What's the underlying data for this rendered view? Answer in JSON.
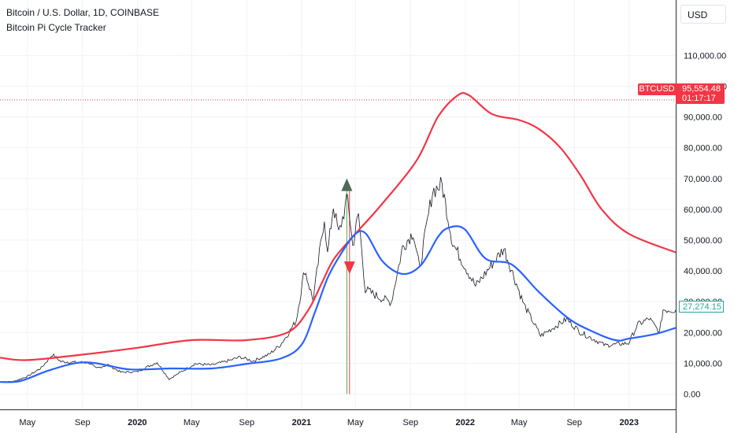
{
  "header": {
    "title": "Bitcoin / U.S. Dollar, 1D, COINBASE",
    "subtitle": "Bitcoin Pi Cycle Tracker"
  },
  "currency_label": "USD",
  "price_marker": {
    "symbol": "BTCUSD",
    "value": "95,554.48",
    "countdown": "01:17:17",
    "color": "#f23645"
  },
  "last_value_label": "27,274.15",
  "chart_data": {
    "type": "line",
    "yaxis": {
      "range": [
        -5000,
        128000
      ],
      "ticks": [
        {
          "value": 0,
          "label": "0.00"
        },
        {
          "value": 10000,
          "label": "10,000.00"
        },
        {
          "value": 20000,
          "label": "20,000.00"
        },
        {
          "value": 30000,
          "label": "30,000.00"
        },
        {
          "value": 40000,
          "label": "40,000.00"
        },
        {
          "value": 50000,
          "label": "50,000.00"
        },
        {
          "value": 60000,
          "label": "60,000.00"
        },
        {
          "value": 70000,
          "label": "70,000.00"
        },
        {
          "value": 80000,
          "label": "80,000.00"
        },
        {
          "value": 90000,
          "label": "90,000.00"
        },
        {
          "value": 100000,
          "label": "100,000.00"
        },
        {
          "value": 110000,
          "label": "110,000.00"
        }
      ]
    },
    "xaxis": {
      "range": [
        "2019-03-01",
        "2023-04-15"
      ],
      "ticks": [
        {
          "date": "2019-05-01",
          "label": "May",
          "bold": false
        },
        {
          "date": "2019-09-01",
          "label": "Sep",
          "bold": false
        },
        {
          "date": "2020-01-01",
          "label": "2020",
          "bold": true
        },
        {
          "date": "2020-05-01",
          "label": "May",
          "bold": false
        },
        {
          "date": "2020-09-01",
          "label": "Sep",
          "bold": false
        },
        {
          "date": "2021-01-01",
          "label": "2021",
          "bold": true
        },
        {
          "date": "2021-05-01",
          "label": "May",
          "bold": false
        },
        {
          "date": "2021-09-01",
          "label": "Sep",
          "bold": false
        },
        {
          "date": "2022-01-01",
          "label": "2022",
          "bold": true
        },
        {
          "date": "2022-05-01",
          "label": "May",
          "bold": false
        },
        {
          "date": "2022-09-01",
          "label": "Sep",
          "bold": false
        },
        {
          "date": "2023-01-01",
          "label": "2023",
          "bold": true
        }
      ]
    },
    "price_line": 95554.48,
    "series": [
      {
        "role": "price",
        "color": "#131722",
        "points": [
          [
            "2019-03-01",
            3800
          ],
          [
            "2019-04-01",
            4100
          ],
          [
            "2019-05-01",
            5700
          ],
          [
            "2019-06-01",
            8500
          ],
          [
            "2019-06-26",
            12800
          ],
          [
            "2019-07-15",
            10500
          ],
          [
            "2019-08-15",
            10300
          ],
          [
            "2019-09-15",
            10200
          ],
          [
            "2019-10-01",
            8300
          ],
          [
            "2019-10-27",
            9500
          ],
          [
            "2019-11-25",
            7100
          ],
          [
            "2019-12-31",
            7200
          ],
          [
            "2020-02-14",
            10300
          ],
          [
            "2020-03-12",
            4800
          ],
          [
            "2020-04-01",
            6600
          ],
          [
            "2020-05-08",
            9800
          ],
          [
            "2020-06-15",
            9400
          ],
          [
            "2020-07-27",
            11000
          ],
          [
            "2020-08-17",
            12000
          ],
          [
            "2020-09-15",
            10700
          ],
          [
            "2020-10-21",
            12900
          ],
          [
            "2020-11-15",
            16000
          ],
          [
            "2020-12-01",
            19300
          ],
          [
            "2020-12-20",
            23800
          ],
          [
            "2021-01-08",
            40500
          ],
          [
            "2021-01-27",
            30400
          ],
          [
            "2021-02-21",
            57500
          ],
          [
            "2021-02-28",
            45200
          ],
          [
            "2021-03-13",
            61200
          ],
          [
            "2021-03-25",
            52000
          ],
          [
            "2021-04-14",
            64000
          ],
          [
            "2021-04-25",
            48000
          ],
          [
            "2021-05-08",
            58500
          ],
          [
            "2021-05-23",
            34000
          ],
          [
            "2021-06-22",
            31500
          ],
          [
            "2021-07-20",
            29800
          ],
          [
            "2021-08-14",
            47500
          ],
          [
            "2021-09-07",
            52700
          ],
          [
            "2021-09-21",
            40600
          ],
          [
            "2021-10-20",
            66000
          ],
          [
            "2021-11-10",
            68000
          ],
          [
            "2021-12-04",
            49000
          ],
          [
            "2022-01-24",
            35000
          ],
          [
            "2022-03-28",
            47300
          ],
          [
            "2022-05-12",
            28900
          ],
          [
            "2022-06-18",
            18900
          ],
          [
            "2022-08-15",
            24300
          ],
          [
            "2022-09-15",
            20000
          ],
          [
            "2022-11-09",
            15800
          ],
          [
            "2022-12-31",
            16500
          ],
          [
            "2023-01-20",
            22500
          ],
          [
            "2023-02-15",
            24500
          ],
          [
            "2023-03-10",
            20000
          ],
          [
            "2023-03-18",
            27400
          ],
          [
            "2023-04-15",
            27274
          ]
        ]
      },
      {
        "role": "upper",
        "color": "#f23645",
        "points": [
          [
            "2019-03-01",
            11800
          ],
          [
            "2019-05-01",
            11000
          ],
          [
            "2019-09-01",
            12800
          ],
          [
            "2020-01-01",
            15000
          ],
          [
            "2020-05-01",
            17500
          ],
          [
            "2020-09-01",
            17500
          ],
          [
            "2020-12-01",
            20000
          ],
          [
            "2021-01-15",
            27000
          ],
          [
            "2021-02-15",
            36000
          ],
          [
            "2021-03-15",
            44000
          ],
          [
            "2021-05-01",
            52000
          ],
          [
            "2021-07-01",
            62000
          ],
          [
            "2021-09-15",
            76000
          ],
          [
            "2021-11-01",
            90000
          ],
          [
            "2021-12-15",
            97000
          ],
          [
            "2022-01-10",
            97000
          ],
          [
            "2022-03-01",
            91000
          ],
          [
            "2022-05-01",
            89000
          ],
          [
            "2022-06-15",
            86000
          ],
          [
            "2022-08-01",
            80000
          ],
          [
            "2022-09-15",
            71000
          ],
          [
            "2022-11-01",
            60000
          ],
          [
            "2023-01-01",
            52000
          ],
          [
            "2023-04-15",
            46000
          ]
        ]
      },
      {
        "role": "lower",
        "color": "#2962ff",
        "points": [
          [
            "2019-03-01",
            3900
          ],
          [
            "2019-04-15",
            4200
          ],
          [
            "2019-06-15",
            7500
          ],
          [
            "2019-08-15",
            10000
          ],
          [
            "2019-10-01",
            10000
          ],
          [
            "2019-12-15",
            8000
          ],
          [
            "2020-03-15",
            8300
          ],
          [
            "2020-06-15",
            8300
          ],
          [
            "2020-09-01",
            9800
          ],
          [
            "2020-11-15",
            11500
          ],
          [
            "2021-01-01",
            16000
          ],
          [
            "2021-02-01",
            27000
          ],
          [
            "2021-03-01",
            38000
          ],
          [
            "2021-04-01",
            46000
          ],
          [
            "2021-05-01",
            52000
          ],
          [
            "2021-05-25",
            52000
          ],
          [
            "2021-07-01",
            43000
          ],
          [
            "2021-08-15",
            39000
          ],
          [
            "2021-09-25",
            42000
          ],
          [
            "2021-11-01",
            51000
          ],
          [
            "2021-11-25",
            54000
          ],
          [
            "2021-12-31",
            53500
          ],
          [
            "2022-02-15",
            44000
          ],
          [
            "2022-04-15",
            42000
          ],
          [
            "2022-06-15",
            33000
          ],
          [
            "2022-08-15",
            25000
          ],
          [
            "2022-10-01",
            21000
          ],
          [
            "2022-12-01",
            17500
          ],
          [
            "2023-01-01",
            18000
          ],
          [
            "2023-03-01",
            19500
          ],
          [
            "2023-04-15",
            21500
          ]
        ]
      }
    ],
    "signals": [
      {
        "kind": "up",
        "date": "2021-04-12",
        "value": 68000,
        "color": "#4e6b57"
      },
      {
        "kind": "down",
        "date": "2021-04-18",
        "value": 41000,
        "color": "#f23645"
      }
    ],
    "signal_lines": [
      {
        "date": "2021-04-12",
        "color": "#4caf50"
      },
      {
        "date": "2021-04-18",
        "color": "#f23645"
      }
    ]
  }
}
